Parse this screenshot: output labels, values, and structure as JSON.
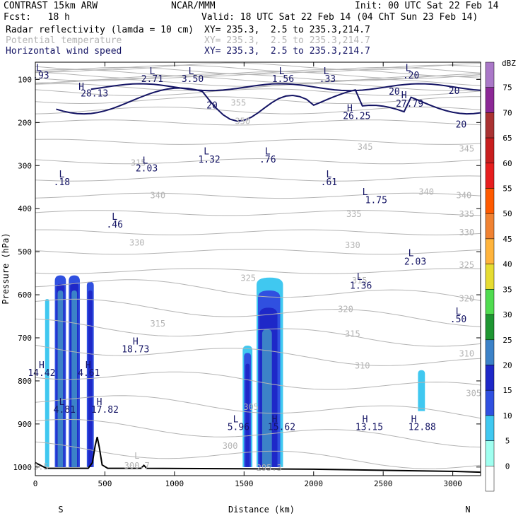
{
  "header": {
    "model": "CONTRAST 15km ARW",
    "org": "NCAR/MMM",
    "init": "Init: 00 UTC Sat 22 Feb 14",
    "fcst": "Fcst:   18 h",
    "valid": "Valid: 18 UTC Sat 22 Feb 14 (04 ChT Sun 23 Feb 14)",
    "lines": [
      {
        "label": "Radar reflectivity (lamda = 10 cm)",
        "xy": "XY= 235.3,  2.5 to 235.3,214.7",
        "color": "#000000"
      },
      {
        "label": "Potential temperature",
        "xy": "XY= 235.3,  2.5 to 235.3,214.7",
        "color": "#b4b4b4"
      },
      {
        "label": "Horizontal wind speed",
        "xy": "XY= 235.3,  2.5 to 235.3,214.7",
        "color": "#141464"
      }
    ]
  },
  "chart_data": {
    "type": "contour-cross-section",
    "xlabel": "Distance (km)",
    "ylabel": "Pressure (hPa)",
    "xlim": [
      0,
      3200
    ],
    "ylim": [
      1020,
      60
    ],
    "x_ticks": [
      0,
      500,
      1000,
      1500,
      2000,
      2500,
      3000
    ],
    "y_ticks": [
      100,
      200,
      300,
      400,
      500,
      600,
      700,
      800,
      900,
      1000
    ],
    "x_end_labels": {
      "left": "S",
      "right": "N"
    },
    "colorbar": {
      "unit": "dBZ",
      "levels": [
        0,
        5,
        10,
        15,
        20,
        25,
        30,
        35,
        40,
        45,
        50,
        55,
        60,
        65,
        70,
        75
      ],
      "colors": [
        "#ffffff",
        "#a0fff0",
        "#40c8f0",
        "#3050e0",
        "#1e28c8",
        "#3c82c8",
        "#1e9632",
        "#50dc50",
        "#e6dc32",
        "#ffb43c",
        "#f08232",
        "#ff5a00",
        "#e61e1e",
        "#c81e1e",
        "#aa3232",
        "#8c2896",
        "#aa78c8"
      ]
    },
    "theta_labels": [
      {
        "x": 1460,
        "p": 155,
        "text": "355"
      },
      {
        "x": 1490,
        "p": 198,
        "text": "350"
      },
      {
        "x": 2370,
        "p": 258,
        "text": "345"
      },
      {
        "x": 3100,
        "p": 262,
        "text": "345"
      },
      {
        "x": 740,
        "p": 295,
        "text": "315"
      },
      {
        "x": 2810,
        "p": 362,
        "text": "340"
      },
      {
        "x": 880,
        "p": 370,
        "text": "340"
      },
      {
        "x": 3080,
        "p": 370,
        "text": "340"
      },
      {
        "x": 2290,
        "p": 414,
        "text": "335"
      },
      {
        "x": 3100,
        "p": 414,
        "text": "335"
      },
      {
        "x": 730,
        "p": 480,
        "text": "330"
      },
      {
        "x": 2280,
        "p": 486,
        "text": "330"
      },
      {
        "x": 3100,
        "p": 456,
        "text": "330"
      },
      {
        "x": 3100,
        "p": 532,
        "text": "325"
      },
      {
        "x": 1530,
        "p": 562,
        "text": "325"
      },
      {
        "x": 2330,
        "p": 568,
        "text": "315"
      },
      {
        "x": 3100,
        "p": 610,
        "text": "320"
      },
      {
        "x": 2230,
        "p": 634,
        "text": "320"
      },
      {
        "x": 880,
        "p": 668,
        "text": "315"
      },
      {
        "x": 2280,
        "p": 692,
        "text": "315"
      },
      {
        "x": 3100,
        "p": 738,
        "text": "310"
      },
      {
        "x": 2350,
        "p": 766,
        "text": "310"
      },
      {
        "x": 3150,
        "p": 830,
        "text": "305"
      },
      {
        "x": 1550,
        "p": 862,
        "text": "305"
      },
      {
        "x": 1400,
        "p": 952,
        "text": "300"
      },
      {
        "x": 1680,
        "p": 1003,
        "text": "295.3"
      },
      {
        "x": 730,
        "p": 998,
        "text": "300.7"
      },
      {
        "x": 730,
        "p": 975,
        "text": "L"
      },
      {
        "x": 40,
        "p": 1000,
        "text": "3.5"
      }
    ],
    "wind_labels": [
      {
        "x": 25,
        "p": 75,
        "text": "L"
      },
      {
        "x": 40,
        "p": 92,
        "text": ".93"
      },
      {
        "x": 330,
        "p": 118,
        "text": "H"
      },
      {
        "x": 425,
        "p": 134,
        "text": "28.13"
      },
      {
        "x": 840,
        "p": 82,
        "text": "L"
      },
      {
        "x": 840,
        "p": 100,
        "text": "2.71"
      },
      {
        "x": 1120,
        "p": 82,
        "text": "L"
      },
      {
        "x": 1130,
        "p": 100,
        "text": "3.50"
      },
      {
        "x": 1770,
        "p": 82,
        "text": "L"
      },
      {
        "x": 1780,
        "p": 100,
        "text": "1.56"
      },
      {
        "x": 2090,
        "p": 82,
        "text": "L"
      },
      {
        "x": 2100,
        "p": 100,
        "text": ".33"
      },
      {
        "x": 2680,
        "p": 75,
        "text": "L"
      },
      {
        "x": 2700,
        "p": 92,
        "text": ".20"
      },
      {
        "x": 2580,
        "p": 130,
        "text": "20"
      },
      {
        "x": 2650,
        "p": 138,
        "text": "H"
      },
      {
        "x": 2690,
        "p": 158,
        "text": "27.79"
      },
      {
        "x": 3010,
        "p": 128,
        "text": "20"
      },
      {
        "x": 2260,
        "p": 168,
        "text": "H"
      },
      {
        "x": 2310,
        "p": 186,
        "text": "26.25"
      },
      {
        "x": 3060,
        "p": 206,
        "text": "20"
      },
      {
        "x": 1270,
        "p": 162,
        "text": "20"
      },
      {
        "x": 1230,
        "p": 268,
        "text": "L"
      },
      {
        "x": 1250,
        "p": 287,
        "text": "1.32"
      },
      {
        "x": 1670,
        "p": 268,
        "text": "L"
      },
      {
        "x": 1670,
        "p": 287,
        "text": ".76"
      },
      {
        "x": 790,
        "p": 290,
        "text": "L"
      },
      {
        "x": 800,
        "p": 308,
        "text": "2.03"
      },
      {
        "x": 190,
        "p": 322,
        "text": "L"
      },
      {
        "x": 190,
        "p": 340,
        "text": ".18"
      },
      {
        "x": 2110,
        "p": 322,
        "text": "L"
      },
      {
        "x": 2110,
        "p": 340,
        "text": ".61"
      },
      {
        "x": 2370,
        "p": 363,
        "text": "L"
      },
      {
        "x": 2450,
        "p": 382,
        "text": "1.75"
      },
      {
        "x": 570,
        "p": 420,
        "text": "L"
      },
      {
        "x": 570,
        "p": 438,
        "text": ".46"
      },
      {
        "x": 2700,
        "p": 505,
        "text": "L"
      },
      {
        "x": 2730,
        "p": 524,
        "text": "2.03"
      },
      {
        "x": 2330,
        "p": 560,
        "text": "L"
      },
      {
        "x": 2340,
        "p": 580,
        "text": "1.36"
      },
      {
        "x": 3040,
        "p": 640,
        "text": "L"
      },
      {
        "x": 3040,
        "p": 658,
        "text": ".50"
      },
      {
        "x": 720,
        "p": 710,
        "text": "H"
      },
      {
        "x": 720,
        "p": 728,
        "text": "18.73"
      },
      {
        "x": 45,
        "p": 765,
        "text": "H"
      },
      {
        "x": 45,
        "p": 783,
        "text": "14.42"
      },
      {
        "x": 380,
        "p": 765,
        "text": "H"
      },
      {
        "x": 385,
        "p": 783,
        "text": "4.61"
      },
      {
        "x": 190,
        "p": 850,
        "text": "L"
      },
      {
        "x": 210,
        "p": 868,
        "text": "4.81"
      },
      {
        "x": 460,
        "p": 850,
        "text": "H"
      },
      {
        "x": 500,
        "p": 868,
        "text": "17.82"
      },
      {
        "x": 1440,
        "p": 890,
        "text": "L"
      },
      {
        "x": 1460,
        "p": 908,
        "text": "5.96"
      },
      {
        "x": 1720,
        "p": 890,
        "text": "H"
      },
      {
        "x": 1770,
        "p": 908,
        "text": "15.62"
      },
      {
        "x": 2370,
        "p": 890,
        "text": "H"
      },
      {
        "x": 2400,
        "p": 908,
        "text": "13.15"
      },
      {
        "x": 2720,
        "p": 890,
        "text": "H"
      },
      {
        "x": 2780,
        "p": 908,
        "text": "12.88"
      }
    ],
    "reflectivity_cells": [
      {
        "x0": 70,
        "x1": 100,
        "ptop": 610,
        "pbot": 1000,
        "dbz": 5
      },
      {
        "x0": 140,
        "x1": 220,
        "ptop": 555,
        "pbot": 1000,
        "dbz": 10
      },
      {
        "x0": 150,
        "x1": 210,
        "ptop": 575,
        "pbot": 1000,
        "dbz": 15
      },
      {
        "x0": 160,
        "x1": 200,
        "ptop": 590,
        "pbot": 1000,
        "dbz": 20
      },
      {
        "x0": 240,
        "x1": 320,
        "ptop": 555,
        "pbot": 1000,
        "dbz": 10
      },
      {
        "x0": 250,
        "x1": 310,
        "ptop": 572,
        "pbot": 1000,
        "dbz": 15
      },
      {
        "x0": 260,
        "x1": 300,
        "ptop": 590,
        "pbot": 1000,
        "dbz": 20
      },
      {
        "x0": 370,
        "x1": 420,
        "ptop": 570,
        "pbot": 1000,
        "dbz": 10
      },
      {
        "x0": 380,
        "x1": 410,
        "ptop": 590,
        "pbot": 1000,
        "dbz": 15
      },
      {
        "x0": 1490,
        "x1": 1560,
        "ptop": 718,
        "pbot": 1000,
        "dbz": 5
      },
      {
        "x0": 1500,
        "x1": 1550,
        "ptop": 735,
        "pbot": 1000,
        "dbz": 10
      },
      {
        "x0": 1510,
        "x1": 1540,
        "ptop": 760,
        "pbot": 1000,
        "dbz": 15
      },
      {
        "x0": 1590,
        "x1": 1780,
        "ptop": 560,
        "pbot": 1000,
        "dbz": 5
      },
      {
        "x0": 1600,
        "x1": 1760,
        "ptop": 590,
        "pbot": 1000,
        "dbz": 10
      },
      {
        "x0": 1610,
        "x1": 1740,
        "ptop": 630,
        "pbot": 1000,
        "dbz": 15
      },
      {
        "x0": 1630,
        "x1": 1700,
        "ptop": 680,
        "pbot": 1000,
        "dbz": 20
      },
      {
        "x0": 2750,
        "x1": 2800,
        "ptop": 775,
        "pbot": 870,
        "dbz": 5
      }
    ],
    "terrain": [
      [
        0,
        990
      ],
      [
        80,
        1003
      ],
      [
        380,
        1003
      ],
      [
        410,
        990
      ],
      [
        430,
        950
      ],
      [
        445,
        930
      ],
      [
        460,
        955
      ],
      [
        480,
        995
      ],
      [
        520,
        1003
      ],
      [
        760,
        1003
      ],
      [
        780,
        996
      ],
      [
        800,
        1003
      ],
      [
        1500,
        1004
      ],
      [
        2000,
        1005
      ],
      [
        2600,
        1008
      ],
      [
        3000,
        1010
      ],
      [
        3200,
        1012
      ]
    ]
  }
}
